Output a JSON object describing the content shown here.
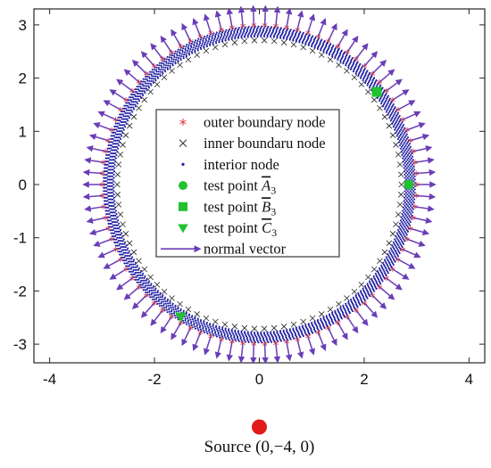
{
  "chart_data": {
    "type": "scatter",
    "xlim": [
      -4.3,
      4.3
    ],
    "ylim": [
      -3.35,
      3.3
    ],
    "xticks": [
      -4,
      -2,
      0,
      2,
      4
    ],
    "yticks": [
      -3,
      -2,
      -1,
      0,
      1,
      2,
      3
    ],
    "xtick_labels": [
      "-4",
      "-2",
      "0",
      "2",
      "4"
    ],
    "ytick_labels": [
      "-3",
      "-2",
      "-1",
      "0",
      "1",
      "2",
      "3"
    ],
    "grid": false,
    "legend_position": "center",
    "geometry": {
      "outer_radius": 3.0,
      "inner_radius": 2.75,
      "arrow_length": 0.35,
      "n_boundary_nodes": 90
    },
    "series": [
      {
        "name": "outer boundary node",
        "marker": "asterisk",
        "color": "#e23b3b"
      },
      {
        "name": "inner boundaru node",
        "marker": "x",
        "color": "#222222"
      },
      {
        "name": "interior node",
        "marker": "dot",
        "color": "#1f1fa3"
      },
      {
        "name": "test point",
        "sub": "A",
        "idx": "3",
        "marker": "circle",
        "color": "#22c22e",
        "x": 2.85,
        "y": 0.0
      },
      {
        "name": "test point",
        "sub": "B",
        "idx": "3",
        "marker": "square",
        "color": "#22c22e",
        "x": 2.24,
        "y": 1.74
      },
      {
        "name": "test point",
        "sub": "C",
        "idx": "3",
        "marker": "triangle-down",
        "color": "#22c22e",
        "x": -1.5,
        "y": -2.48
      },
      {
        "name": "normal vector",
        "marker": "arrow",
        "color": "#6a3db8"
      }
    ],
    "source": {
      "label": "Source",
      "coords": "(0,−4, 0)",
      "x": 0,
      "y": -4,
      "color": "#e31a1a"
    }
  }
}
